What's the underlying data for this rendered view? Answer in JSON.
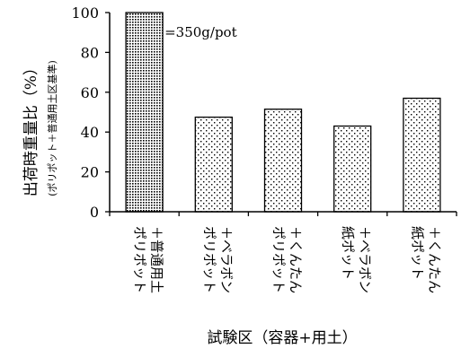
{
  "chart_data": {
    "type": "bar",
    "title": "",
    "ylabel": "出荷時重量比（%）",
    "ylabel_sub": "(ポリポット＋普通用土区基準)",
    "xlabel": "試験区（容器+用土）",
    "ylim": [
      0,
      100
    ],
    "yticks": [
      0,
      20,
      40,
      60,
      80,
      100
    ],
    "categories": [
      [
        "ポリポット",
        "＋普通用土"
      ],
      [
        "ポリポット",
        "＋ベラボン"
      ],
      [
        "ポリポット",
        "＋くんたん"
      ],
      [
        "紙ポット",
        "＋ベラボン"
      ],
      [
        "紙ポット",
        "＋くんたん"
      ]
    ],
    "values": [
      100,
      47.5,
      51.5,
      43,
      57
    ],
    "annotation": "=350g/pot",
    "legend": "none",
    "grid": false,
    "colors": {
      "bar_fill": "#ffffff",
      "dots": "#000000",
      "axis": "#000000"
    }
  }
}
